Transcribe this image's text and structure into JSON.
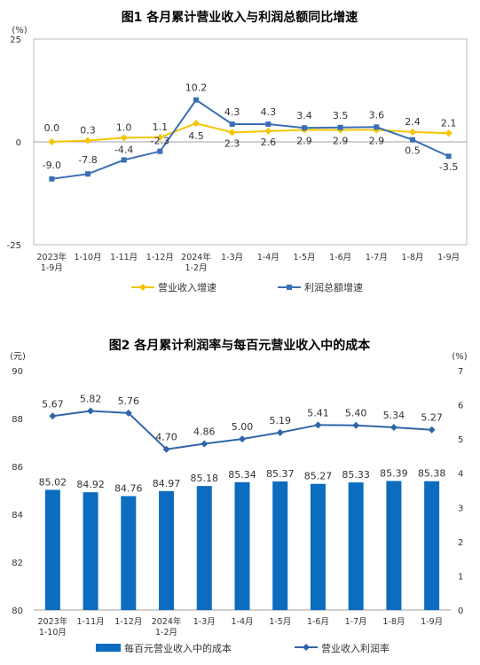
{
  "chart_data": [
    {
      "type": "line",
      "title": "图1  各月累计营业收入与利润总额同比增速",
      "unit": "(%)",
      "ylim": [
        -25,
        25
      ],
      "yticks": [
        "25",
        "0",
        "-25"
      ],
      "categories": [
        [
          "2023年",
          "1-9月"
        ],
        [
          "1-10月"
        ],
        [
          "1-11月"
        ],
        [
          "1-12月"
        ],
        [
          "2024年",
          "1-2月"
        ],
        [
          "1-3月"
        ],
        [
          "1-4月"
        ],
        [
          "1-5月"
        ],
        [
          "1-6月"
        ],
        [
          "1-7月"
        ],
        [
          "1-8月"
        ],
        [
          "1-9月"
        ]
      ],
      "series": [
        {
          "name": "营业收入增速",
          "color": "#f5c400",
          "marker": "diamond",
          "values": [
            0.0,
            0.3,
            1.0,
            1.1,
            4.5,
            2.3,
            2.6,
            2.9,
            2.9,
            2.9,
            2.4,
            2.1
          ],
          "labels": [
            "0.0",
            "0.3",
            "1.0",
            "1.1",
            "4.5",
            "2.3",
            "2.6",
            "2.9",
            "2.9",
            "2.9",
            "2.4",
            "2.1"
          ]
        },
        {
          "name": "利润总额增速",
          "color": "#3a6fb7",
          "marker": "square",
          "values": [
            -9.0,
            -7.8,
            -4.4,
            -2.3,
            10.2,
            4.3,
            4.3,
            3.4,
            3.5,
            3.6,
            0.5,
            -3.5
          ],
          "labels": [
            "-9.0",
            "-7.8",
            "-4.4",
            "-2.3",
            "10.2",
            "4.3",
            "4.3",
            "3.4",
            "3.5",
            "3.6",
            "0.5",
            "-3.5"
          ]
        }
      ]
    },
    {
      "type": "bar",
      "title": "图2  各月累计利润率与每百元营业收入中的成本",
      "left_unit": "(元)",
      "right_unit": "(%)",
      "ylim_left": [
        80,
        90
      ],
      "ylim_right": [
        0,
        7
      ],
      "yticks_left": [
        "80",
        "82",
        "84",
        "86",
        "88",
        "90"
      ],
      "yticks_right": [
        "0",
        "1",
        "2",
        "3",
        "4",
        "5",
        "6",
        "7"
      ],
      "categories": [
        [
          "2023年",
          "1-10月"
        ],
        [
          "1-11月"
        ],
        [
          "1-12月"
        ],
        [
          "2024年",
          "1-2月"
        ],
        [
          "1-3月"
        ],
        [
          "1-4月"
        ],
        [
          "1-5月"
        ],
        [
          "1-6月"
        ],
        [
          "1-7月"
        ],
        [
          "1-8月"
        ],
        [
          "1-9月"
        ]
      ],
      "series": [
        {
          "name": "每百元营业收入中的成本",
          "color": "#0b6cc0",
          "axis": "left",
          "values": [
            85.02,
            84.92,
            84.76,
            84.97,
            85.18,
            85.34,
            85.37,
            85.27,
            85.33,
            85.39,
            85.38
          ],
          "labels": [
            "85.02",
            "84.92",
            "84.76",
            "84.97",
            "85.18",
            "85.34",
            "85.37",
            "85.27",
            "85.33",
            "85.39",
            "85.38"
          ]
        },
        {
          "name": "营业收入利润率",
          "color": "#2f65a8",
          "axis": "right",
          "marker": "diamond",
          "values": [
            5.67,
            5.82,
            5.76,
            4.7,
            4.86,
            5.0,
            5.19,
            5.41,
            5.4,
            5.34,
            5.27
          ],
          "labels": [
            "5.67",
            "5.82",
            "5.76",
            "4.70",
            "4.86",
            "5.00",
            "5.19",
            "5.41",
            "5.40",
            "5.34",
            "5.27"
          ]
        }
      ]
    }
  ]
}
